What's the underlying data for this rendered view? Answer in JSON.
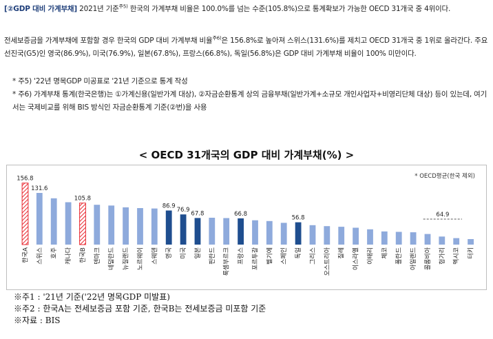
{
  "paragraphs": {
    "p1": {
      "head": "[②GDP 대비 가계부채]",
      "text_a": " 2021년 기준",
      "sup": "주5)",
      "text_b": " 한국의 가계부채 비율은 100.0%를 넘는 수준(105.8%)으로 통계확보가 가능한 OECD 31개국 중 4위이다."
    },
    "p2": {
      "text_a": " 전세보증금을 가계부채에 포함할 경우 한국의 GDP 대비 가계부채 비율",
      "sup": "주6)",
      "text_b": "은 156.8%로 높아져 스위스(131.6%)를 제치고 OECD 31개국 중 1위로 올라간다. 주요 선진국(G5)인 영국(86.9%), 미국(76.9%), 일본(67.8%), 프랑스(66.8%), 독일(56.8%)은 GDP 대비 가계부채 비율이 100% 미만이다."
    },
    "notes": [
      "* 주5) '22년 명목GDP 미공표로 '21년 기준으로 통계 작성",
      "* 주6) 가계부채 통계(한국은행)는 ①가계신용(일반가계 대상), ②자금순환통계 상의 금융부채(일반가계+소규모 개인사업자+비영리단체 대상) 등이 있는데, 여기서는 국제비교를 위해 BIS 방식인 자금순환통계 기준(②번)을 사용"
    ]
  },
  "chart_data": {
    "type": "bar",
    "title": "< OECD 31개국의 GDP 대비 가계부채(%) >",
    "ylim": [
      0,
      165
    ],
    "categories": [
      "한국A",
      "스위스",
      "호주",
      "캐나다",
      "한국B",
      "덴마크",
      "네덜란드",
      "뉴질랜드",
      "노르웨이",
      "스웨덴",
      "영국",
      "미국",
      "일본",
      "핀란드",
      "룩셈부르크",
      "프랑스",
      "포르투갈",
      "벨기에",
      "스페인",
      "독일",
      "그리스",
      "오스트리아",
      "칠레",
      "이스라엘",
      "이태리",
      "체코",
      "폴란드",
      "아일랜드",
      "콜롬비아",
      "헝가리",
      "멕시코",
      "터키"
    ],
    "values": [
      156.8,
      131.6,
      118.0,
      108.0,
      105.8,
      101.5,
      99.5,
      95.0,
      93.0,
      92.0,
      86.9,
      76.9,
      67.8,
      68.5,
      67.5,
      66.8,
      62.0,
      60.0,
      55.5,
      56.8,
      49.5,
      47.0,
      45.5,
      43.0,
      39.0,
      33.5,
      32.5,
      31.5,
      27.0,
      20.5,
      16.5,
      14.0
    ],
    "data_labels": [
      "156.8",
      "131.6",
      "",
      "",
      "105.8",
      "",
      "",
      "",
      "",
      "",
      "86.9",
      "76.9",
      "67.8",
      "",
      "",
      "66.8",
      "",
      "",
      "",
      "56.8",
      "",
      "",
      "",
      "",
      "",
      "",
      "",
      "",
      "",
      "",
      "",
      ""
    ],
    "highlight": [
      "hatched",
      "normal",
      "normal",
      "normal",
      "hatched",
      "normal",
      "normal",
      "normal",
      "normal",
      "normal",
      "g5",
      "g5",
      "g5",
      "normal",
      "normal",
      "g5",
      "normal",
      "normal",
      "normal",
      "g5",
      "normal",
      "normal",
      "normal",
      "normal",
      "normal",
      "normal",
      "normal",
      "normal",
      "normal",
      "normal",
      "normal",
      "normal"
    ],
    "avg_line": {
      "value": 64.9,
      "label": "64.9",
      "legend": "* OECD평균(한국 제외)"
    },
    "colors": {
      "normal": "#8eaadc",
      "g5": "#1f4e8f",
      "hatched": "#e8272f",
      "avg": "#7a7a7a"
    }
  },
  "footer": [
    "※주1 : '21년 기준('22년 명목GDP 미발표)",
    "※주2 : 한국A는 전세보증금 포함 기준, 한국B는 전세보증금 미포함 기준",
    "※자료 : BIS"
  ]
}
